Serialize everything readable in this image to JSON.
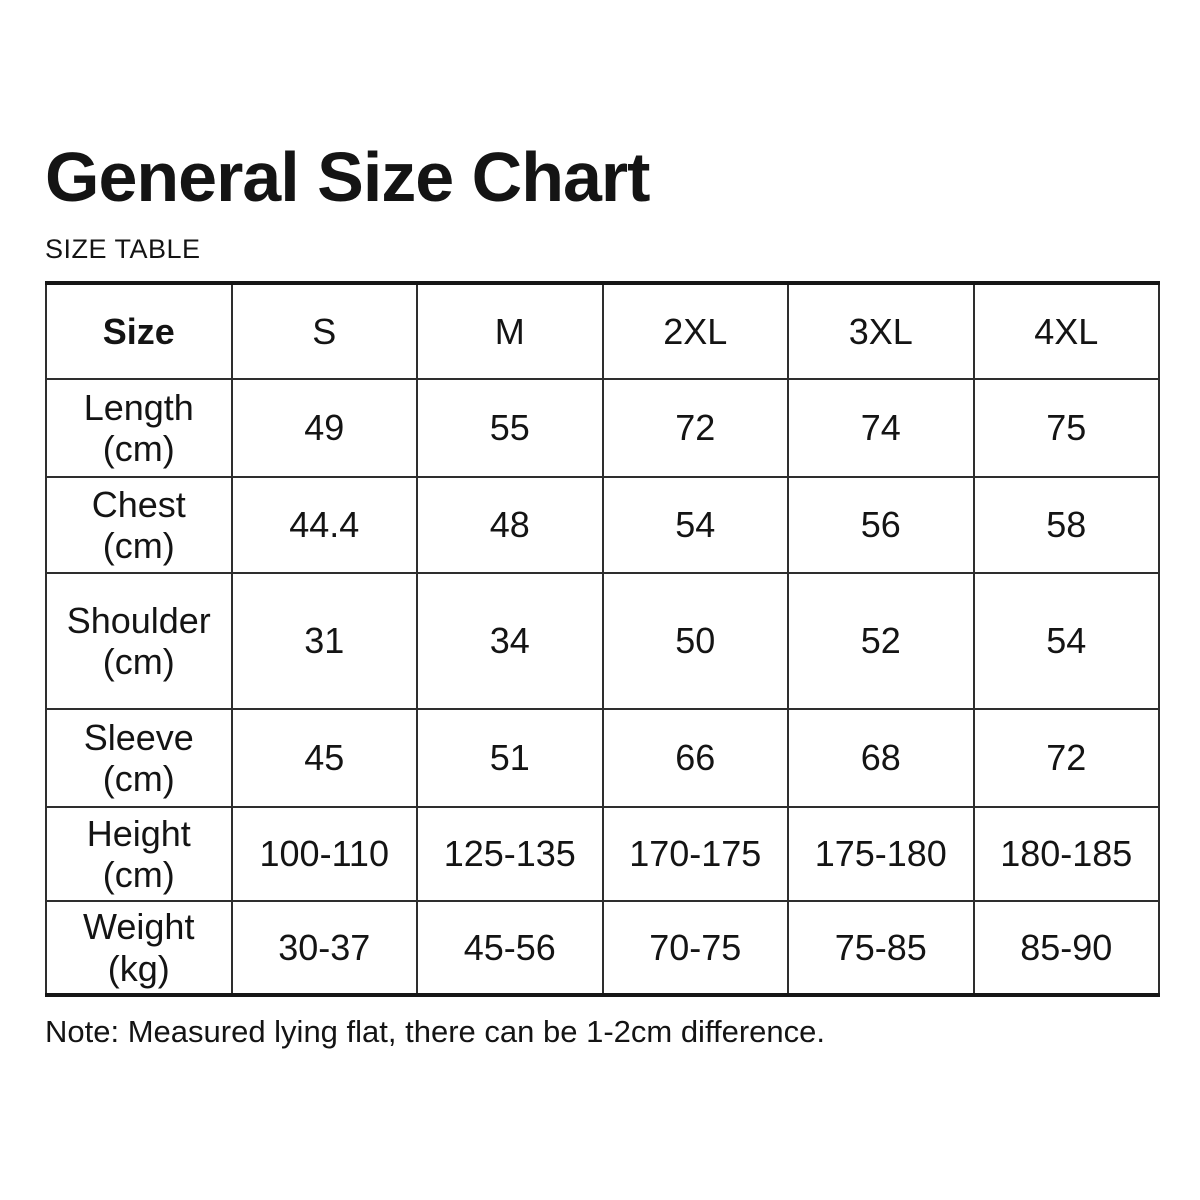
{
  "header": {
    "title": "General Size Chart",
    "subtitle": "SIZE TABLE"
  },
  "note": "Note: Measured lying flat, there can be 1-2cm difference.",
  "colors": {
    "background": "#ffffff",
    "text": "#141414",
    "border_outer": "#161616",
    "border_inner": "#2e2e2e"
  },
  "chart_data": {
    "type": "table",
    "title": "General Size Chart",
    "subtitle": "SIZE TABLE",
    "columns": [
      "Size",
      "S",
      "M",
      "2XL",
      "3XL",
      "4XL"
    ],
    "rows": [
      {
        "name": "Length",
        "unit": "(cm)",
        "values": [
          "49",
          "55",
          "72",
          "74",
          "75"
        ]
      },
      {
        "name": "Chest",
        "unit": "(cm)",
        "values": [
          "44.4",
          "48",
          "54",
          "56",
          "58"
        ]
      },
      {
        "name": "Shoulder",
        "unit": "(cm)",
        "values": [
          "31",
          "34",
          "50",
          "52",
          "54"
        ]
      },
      {
        "name": "Sleeve",
        "unit": "(cm)",
        "values": [
          "45",
          "51",
          "66",
          "68",
          "72"
        ]
      },
      {
        "name": "Height",
        "unit": "(cm)",
        "values": [
          "100-110",
          "125-135",
          "170-175",
          "175-180",
          "180-185"
        ]
      },
      {
        "name": "Weight",
        "unit": "(kg)",
        "values": [
          "30-37",
          "45-56",
          "70-75",
          "75-85",
          "85-90"
        ]
      }
    ],
    "note": "Note: Measured lying flat, there can be 1-2cm difference."
  }
}
